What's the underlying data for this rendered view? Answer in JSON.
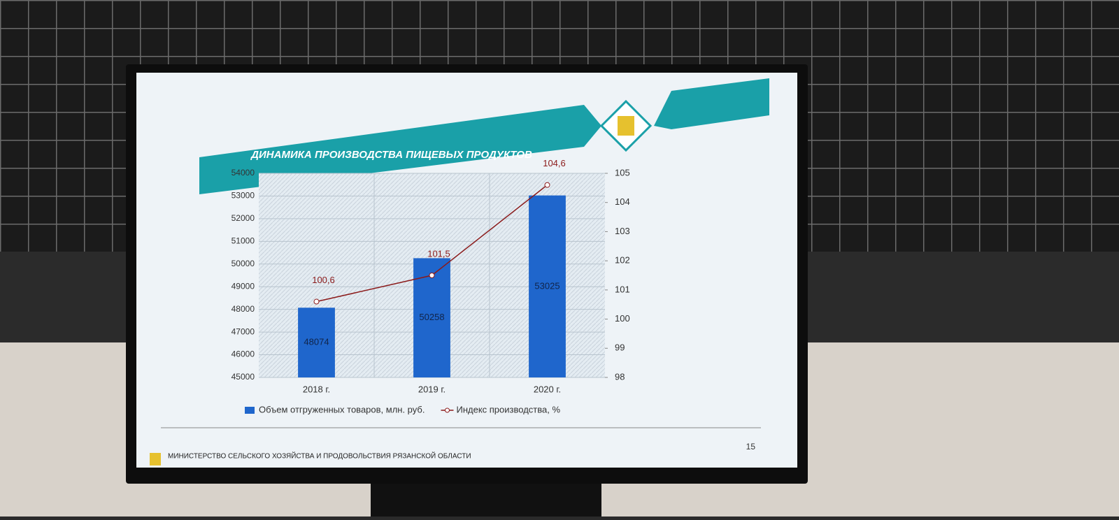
{
  "chart_data": {
    "type": "bar",
    "title": "ДИНАМИКА ПРОИЗВОДСТВА ПИЩЕВЫХ ПРОДУКТОВ",
    "categories": [
      "2018 г.",
      "2019 г.",
      "2020 г."
    ],
    "series": [
      {
        "name": "Объем отгруженных товаров, млн. руб.",
        "type": "bar",
        "color": "#1f66cc",
        "values": [
          48074,
          50258,
          53025
        ]
      },
      {
        "name": "Индекс производства, %",
        "type": "line",
        "axis": "y2",
        "color": "#8b1a1a",
        "values": [
          100.6,
          101.5,
          104.6
        ],
        "value_labels": [
          "100,6",
          "101,5",
          "104,6"
        ]
      }
    ],
    "ylim": [
      45000,
      54000
    ],
    "yticks": [
      45000,
      46000,
      47000,
      48000,
      49000,
      50000,
      51000,
      52000,
      53000,
      54000
    ],
    "y2lim": [
      98,
      105
    ],
    "y2ticks": [
      98,
      99,
      100,
      101,
      102,
      103,
      104,
      105
    ],
    "grid": true
  },
  "footer": {
    "organization": "МИНИСТЕРСТВО СЕЛЬСКОГО ХОЗЯЙСТВА И ПРОДОВОЛЬСТВИЯ РЯЗАНСКОЙ ОБЛАСТИ",
    "page_number": 15
  }
}
